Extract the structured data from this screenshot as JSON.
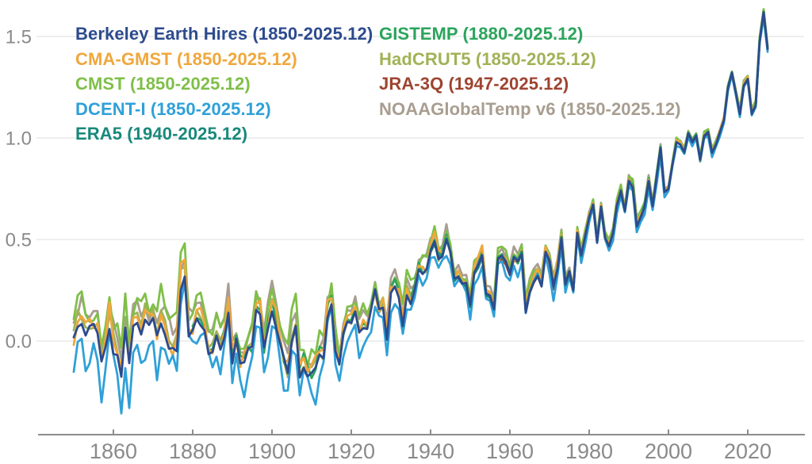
{
  "page": {
    "background": "#ffffff"
  },
  "chart_data": {
    "type": "line",
    "title": "",
    "xlabel": "",
    "ylabel": "",
    "x_start": 1850,
    "x_end": 2025,
    "ylim": [
      -0.45,
      1.7
    ],
    "grid": "horizontal",
    "legend_position": "top, two columns",
    "x_ticks": [
      {
        "v": 1860,
        "label": "1860"
      },
      {
        "v": 1880,
        "label": "1880"
      },
      {
        "v": 1900,
        "label": "1900"
      },
      {
        "v": 1920,
        "label": "1920"
      },
      {
        "v": 1940,
        "label": "1940"
      },
      {
        "v": 1960,
        "label": "1960"
      },
      {
        "v": 1980,
        "label": "1980"
      },
      {
        "v": 2000,
        "label": "2000"
      },
      {
        "v": 2020,
        "label": "2020"
      }
    ],
    "y_ticks": [
      {
        "v": 0.0,
        "label": "0.0"
      },
      {
        "v": 0.5,
        "label": "0.5"
      },
      {
        "v": 1.0,
        "label": "1.0"
      },
      {
        "v": 1.5,
        "label": "1.5"
      }
    ],
    "style": {
      "grid_color": "#e8e8e8",
      "axis_color": "#8c8c8c",
      "tick_label_color": "#8a8a8a"
    },
    "anomaly_c": [
      0.0,
      0.08,
      0.1,
      0.05,
      0.06,
      0.05,
      0.02,
      -0.12,
      -0.05,
      0.08,
      -0.04,
      -0.08,
      -0.2,
      0.04,
      -0.12,
      0.06,
      0.1,
      0.04,
      0.11,
      0.06,
      0.08,
      0.01,
      0.1,
      0.05,
      -0.02,
      -0.04,
      -0.03,
      0.28,
      0.35,
      0.04,
      0.05,
      0.11,
      0.08,
      0.04,
      -0.05,
      -0.04,
      0.02,
      -0.04,
      0.04,
      0.17,
      -0.08,
      0.0,
      -0.1,
      -0.11,
      -0.05,
      -0.04,
      0.16,
      0.14,
      -0.05,
      0.07,
      0.17,
      0.09,
      -0.02,
      -0.11,
      -0.17,
      -0.02,
      0.07,
      -0.16,
      -0.12,
      -0.16,
      -0.17,
      -0.16,
      -0.08,
      -0.08,
      0.13,
      0.2,
      -0.03,
      -0.12,
      0.02,
      0.1,
      0.09,
      0.14,
      0.03,
      0.07,
      0.06,
      0.14,
      0.24,
      0.14,
      0.17,
      0.02,
      0.23,
      0.27,
      0.22,
      0.08,
      0.24,
      0.19,
      0.24,
      0.34,
      0.33,
      0.34,
      0.44,
      0.48,
      0.4,
      0.43,
      0.52,
      0.44,
      0.3,
      0.32,
      0.29,
      0.28,
      0.18,
      0.34,
      0.37,
      0.43,
      0.23,
      0.22,
      0.16,
      0.4,
      0.41,
      0.38,
      0.33,
      0.41,
      0.39,
      0.43,
      0.15,
      0.25,
      0.3,
      0.33,
      0.28,
      0.44,
      0.39,
      0.27,
      0.36,
      0.51,
      0.28,
      0.34,
      0.25,
      0.53,
      0.42,
      0.52,
      0.61,
      0.67,
      0.49,
      0.66,
      0.51,
      0.47,
      0.53,
      0.67,
      0.74,
      0.64,
      0.79,
      0.76,
      0.57,
      0.61,
      0.66,
      0.79,
      0.67,
      0.81,
      0.95,
      0.73,
      0.75,
      0.87,
      0.98,
      0.97,
      0.93,
      1.02,
      0.98,
      1.01,
      0.89,
      1.01,
      1.03,
      0.93,
      0.97,
      1.03,
      1.09,
      1.25,
      1.32,
      1.22,
      1.12,
      1.26,
      1.29,
      1.12,
      1.16,
      1.48,
      1.62,
      1.44
    ],
    "series": [
      {
        "name": "berkeley-earth-hires",
        "label": "Berkeley Earth Hires (1850-2025.12)",
        "color": "#2c4b8e",
        "start_year": 1850,
        "end_year": 2025,
        "column": "left",
        "z": 8,
        "seed": 1,
        "spread": 0.04,
        "bias": 0.0
      },
      {
        "name": "cma-gmst",
        "label": "CMA-GMST (1850-2025.12)",
        "color": "#f0a73c",
        "start_year": 1850,
        "end_year": 2025,
        "column": "left",
        "z": 5,
        "seed": 2,
        "spread": 0.09,
        "bias": 0.04
      },
      {
        "name": "cmst",
        "label": "CMST (1850-2025.12)",
        "color": "#7fbf48",
        "start_year": 1850,
        "end_year": 2025,
        "column": "left",
        "z": 2,
        "seed": 3,
        "spread": 0.1,
        "bias": 0.12
      },
      {
        "name": "dcent-i",
        "label": "DCENT-I (1850-2025.12)",
        "color": "#2fa0d8",
        "start_year": 1850,
        "end_year": 2025,
        "column": "left",
        "z": 6,
        "seed": 4,
        "spread": 0.13,
        "bias": -0.12
      },
      {
        "name": "era5",
        "label": "ERA5 (1940-2025.12)",
        "color": "#18897b",
        "start_year": 1940,
        "end_year": 2025,
        "column": "left",
        "z": 7,
        "seed": 5,
        "spread": 0.04,
        "bias": 0.0
      },
      {
        "name": "gistemp",
        "label": "GISTEMP (1880-2025.12)",
        "color": "#2ba45c",
        "start_year": 1880,
        "end_year": 2025,
        "column": "right",
        "z": 3,
        "seed": 6,
        "spread": 0.06,
        "bias": 0.02
      },
      {
        "name": "hadcrut5",
        "label": "HadCRUT5 (1850-2025.12)",
        "color": "#a1b256",
        "start_year": 1850,
        "end_year": 2025,
        "column": "right",
        "z": 1,
        "seed": 7,
        "spread": 0.07,
        "bias": 0.03
      },
      {
        "name": "jra-3q",
        "label": "JRA-3Q (1947-2025.12)",
        "color": "#9e4430",
        "start_year": 1947,
        "end_year": 2025,
        "column": "right",
        "z": 4,
        "seed": 8,
        "spread": 0.05,
        "bias": -0.02
      },
      {
        "name": "noaaglobaltemp-v6",
        "label": "NOAAGlobalTemp v6 (1850-2025.12)",
        "color": "#a89d90",
        "start_year": 1850,
        "end_year": 2025,
        "column": "right",
        "z": 0,
        "seed": 9,
        "spread": 0.07,
        "bias": 0.1
      }
    ]
  }
}
